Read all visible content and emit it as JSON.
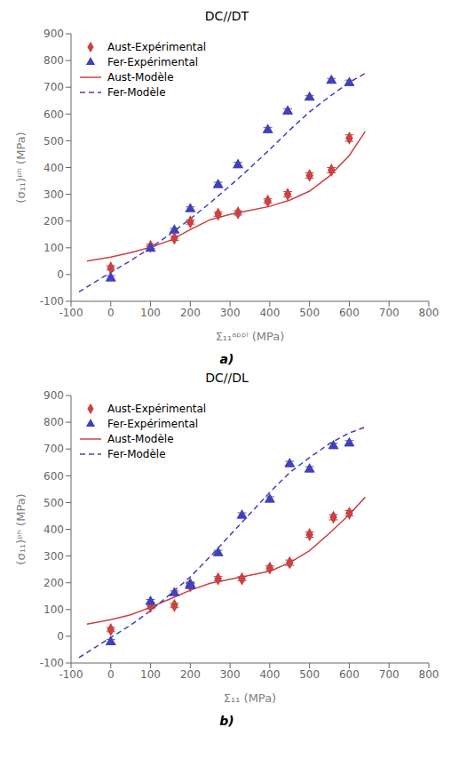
{
  "chart_data": [
    {
      "type": "scatter",
      "title": "DC//DT",
      "x_label": "Σ₁₁ᵃᵖᵖˡ (MPa)",
      "y_label": "(σ₁₁)ᵖʰ (MPa)",
      "annotations": [
        "a)"
      ],
      "xlim": [
        -100,
        800
      ],
      "ylim": [
        -100,
        900
      ],
      "xticks": [
        -100,
        0,
        100,
        200,
        300,
        400,
        500,
        600,
        700,
        800
      ],
      "yticks": [
        -100,
        0,
        100,
        200,
        300,
        400,
        500,
        600,
        700,
        800,
        900
      ],
      "grid": false,
      "legend": "upper left",
      "series": [
        {
          "name": "Aust-Expérimental",
          "type": "scatter",
          "marker": "diamond",
          "color": "#d04040",
          "x": [
            0,
            100,
            160,
            200,
            270,
            320,
            395,
            445,
            500,
            555,
            600
          ],
          "values": [
            25,
            105.5,
            135.5,
            196.5,
            225.5,
            230.5,
            275,
            300,
            370.5,
            390,
            510
          ],
          "errors": [
            8,
            8,
            8,
            8,
            8,
            8,
            8,
            10,
            10,
            10,
            12
          ]
        },
        {
          "name": "Fer-Expérimental",
          "type": "scatter",
          "marker": "triangle",
          "color": "#4040c0",
          "x": [
            0,
            100,
            160,
            200,
            270,
            320,
            395,
            445,
            500,
            555,
            600
          ],
          "values": [
            -14,
            96.5,
            165,
            245,
            335,
            409.5,
            540,
            610,
            661.5,
            725,
            716.5
          ],
          "errors": [
            10,
            8,
            8,
            8,
            10,
            10,
            10,
            10,
            8,
            8,
            10
          ]
        },
        {
          "name": "Aust-Modèle",
          "type": "line",
          "line_style": "solid",
          "color": "#d04040",
          "x": [
            -60,
            0,
            50,
            100,
            150,
            200,
            250,
            300,
            350,
            400,
            450,
            500,
            550,
            600,
            640
          ],
          "values": [
            50,
            65,
            82,
            102,
            128,
            168,
            205,
            225,
            240,
            255,
            278,
            312,
            368,
            445,
            535
          ]
        },
        {
          "name": "Fer-Modèle",
          "type": "line",
          "line_style": "dashed",
          "color": "#4040c0",
          "x": [
            -80,
            -40,
            0,
            50,
            100,
            150,
            200,
            250,
            300,
            350,
            400,
            450,
            500,
            550,
            600,
            640
          ],
          "values": [
            -65,
            -28,
            8,
            52,
            100,
            152,
            208,
            268,
            332,
            398,
            468,
            540,
            608,
            665,
            718,
            752
          ]
        }
      ]
    },
    {
      "type": "scatter",
      "title": "DC//DL",
      "x_label": "Σ₁₁ (MPa)",
      "y_label": "(σ₁₁)ᵖʰ (MPa)",
      "annotations": [
        "b)"
      ],
      "xlim": [
        -100,
        800
      ],
      "ylim": [
        -100,
        900
      ],
      "xticks": [
        -100,
        0,
        100,
        200,
        300,
        400,
        500,
        600,
        700,
        800
      ],
      "yticks": [
        -100,
        0,
        100,
        200,
        300,
        400,
        500,
        600,
        700,
        800,
        900
      ],
      "grid": false,
      "legend": "upper left",
      "series": [
        {
          "name": "Aust-Expérimental",
          "type": "scatter",
          "marker": "diamond",
          "color": "#d04040",
          "x": [
            0,
            100,
            160,
            200,
            200,
            270,
            330,
            400,
            450,
            500,
            560,
            600
          ],
          "values": [
            25,
            111.5,
            115,
            188.5,
            194,
            215,
            215,
            255,
            275,
            380,
            445,
            460
          ],
          "errors": [
            8,
            8,
            8,
            8,
            8,
            8,
            8,
            8,
            10,
            10,
            10,
            10
          ]
        },
        {
          "name": "Fer-Expérimental",
          "type": "scatter",
          "marker": "triangle",
          "color": "#4040c0",
          "x": [
            0,
            100,
            160,
            200,
            200,
            270,
            330,
            400,
            450,
            500,
            560,
            600
          ],
          "values": [
            -21.5,
            129.5,
            161.5,
            188.5,
            194,
            311.5,
            451.5,
            511.5,
            644,
            624,
            711.5,
            721.5
          ],
          "errors": [
            10,
            8,
            8,
            8,
            8,
            10,
            10,
            10,
            10,
            10,
            10,
            10
          ]
        },
        {
          "name": "Aust-Modèle",
          "type": "line",
          "line_style": "solid",
          "color": "#d04040",
          "x": [
            -60,
            0,
            50,
            100,
            150,
            200,
            250,
            300,
            350,
            400,
            450,
            500,
            550,
            600,
            640
          ],
          "values": [
            45,
            62,
            80,
            108,
            140,
            172,
            198,
            213,
            228,
            243,
            275,
            320,
            385,
            455,
            520
          ]
        },
        {
          "name": "Fer-Modèle",
          "type": "line",
          "line_style": "dashed",
          "color": "#4040c0",
          "x": [
            -80,
            -40,
            0,
            50,
            100,
            150,
            200,
            250,
            300,
            350,
            400,
            450,
            500,
            550,
            600,
            640
          ],
          "values": [
            -80,
            -42,
            -5,
            42,
            95,
            158,
            222,
            298,
            378,
            458,
            538,
            612,
            668,
            720,
            760,
            782
          ]
        }
      ]
    }
  ]
}
